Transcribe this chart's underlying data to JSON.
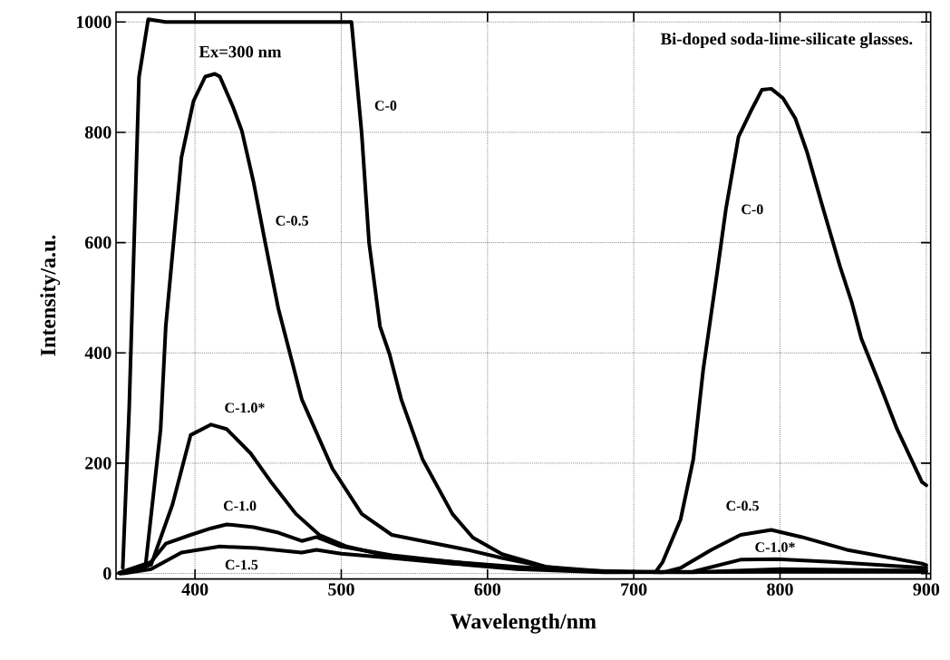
{
  "chart_data": {
    "type": "line",
    "xlabel": "Wavelength/nm",
    "ylabel": "Intensity/a.u.",
    "xlim": [
      346,
      903
    ],
    "ylim": [
      -10,
      1018
    ],
    "xticks": [
      400,
      500,
      600,
      700,
      800,
      900
    ],
    "yticks": [
      0,
      200,
      400,
      600,
      800,
      1000
    ],
    "grid": true,
    "line_style": "solid",
    "marker": "none",
    "series": [
      {
        "color": "#000000",
        "x": [
          350.6,
          355,
          361.7,
          368,
          380,
          420,
          460,
          500,
          507,
          514,
          519,
          526.5,
          533,
          541,
          555.6,
          576,
          590,
          610,
          640,
          660,
          700,
          715,
          719.8,
          732,
          740.7,
          747.5,
          757,
          763,
          771.6,
          779.6,
          787.6,
          794,
          802,
          810.5,
          818.5,
          829,
          841,
          849,
          855.6,
          868,
          880,
          897,
          900
        ],
        "values": [
          10,
          300,
          900,
          1005,
          1000,
          1000,
          1000,
          1000,
          1000,
          797,
          600,
          448,
          398,
          316,
          207,
          108,
          65,
          35,
          12,
          6,
          3,
          3,
          21,
          98,
          207,
          370,
          546,
          661,
          792,
          836,
          877,
          879,
          862,
          825,
          764,
          666,
          557,
          492,
          426,
          344,
          262,
          166,
          160
        ]
      },
      {
        "color": "#000000",
        "x": [
          349,
          366,
          376.5,
          380,
          390.7,
          399,
          407,
          413.6,
          417,
          426,
          432,
          440,
          448,
          457,
          473,
          494,
          514,
          534.6,
          565,
          586,
          610,
          640,
          680,
          720,
          732,
          753,
          773,
          794,
          815,
          845.7,
          897,
          900
        ],
        "values": [
          0,
          10,
          262,
          448,
          754,
          857,
          901,
          906,
          901,
          846,
          803,
          710,
          600,
          480,
          316,
          190,
          108,
          70,
          54,
          43,
          28,
          12,
          4,
          2,
          10,
          43,
          70,
          79,
          66,
          43,
          18,
          15
        ]
      },
      {
        "color": "#000000",
        "x": [
          349,
          370,
          384.6,
          397,
          411,
          421.6,
          438,
          452.5,
          469,
          485,
          503.7,
          534.6,
          576,
          620,
          680,
          740,
          773,
          798,
          835,
          900
        ],
        "values": [
          0,
          16,
          125,
          251,
          270,
          262,
          218,
          164,
          108,
          70,
          49,
          30,
          21,
          12,
          3,
          3,
          25,
          26,
          21,
          10
        ]
      },
      {
        "color": "#000000",
        "x": [
          348,
          370,
          380,
          397,
          411,
          421.6,
          440,
          457,
          473,
          483,
          500,
          534.6,
          576,
          620,
          680,
          740,
          800,
          900
        ],
        "values": [
          1,
          21,
          54,
          70,
          82,
          89,
          84,
          74,
          59,
          66,
          49,
          33,
          21,
          10,
          3,
          2,
          8,
          5
        ]
      },
      {
        "color": "#000000",
        "x": [
          351,
          370,
          390.7,
          417,
          442,
          473,
          483,
          500,
          534.6,
          576,
          620,
          680,
          800,
          900
        ],
        "values": [
          0,
          8,
          38,
          49,
          46,
          38,
          43,
          36,
          28,
          18,
          8,
          2,
          3,
          3
        ]
      }
    ],
    "annotations": [
      "Ex=300 nm",
      "Bi-doped soda-lime-silicate glasses.",
      "C-0",
      "C-0.5",
      "C-1.0*",
      "C-1.0",
      "C-1.5",
      "C-0",
      "C-0.5",
      "C-1.0*"
    ]
  }
}
